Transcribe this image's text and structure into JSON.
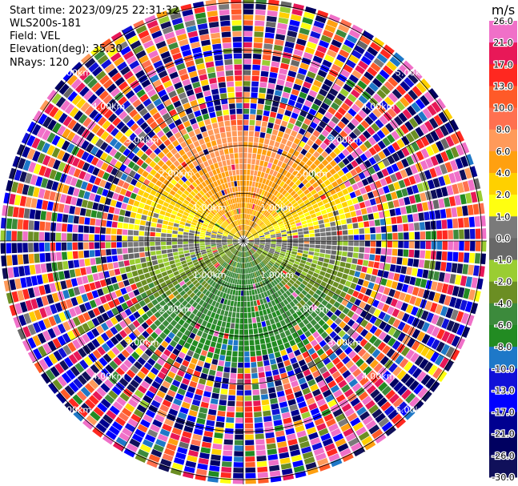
{
  "header": {
    "start_time": "Start time: 2023/09/25 22:31:32",
    "instrument": "WLS200s-181",
    "field": "Field: VEL",
    "elevation": "Elevation(deg): 35.30",
    "nrays": "NRays: 120"
  },
  "colors": {
    "background": "#ffffff",
    "rings": "#000000"
  },
  "chart_data": {
    "type": "heatmap",
    "projection": "polar-ppi",
    "field": "VEL",
    "units": "m/s",
    "nrays": 120,
    "range_rings_km": [
      1.0,
      2.0,
      3.0,
      4.0,
      5.0
    ],
    "range_ring_labels": [
      "1.00km",
      "2.00km",
      "3.00km",
      "4.00km",
      "5.00km"
    ],
    "max_range_km": 5.1,
    "colorbar": {
      "label": "m/s",
      "ticks": [
        "26.0",
        "21.0",
        "17.0",
        "13.0",
        "10.0",
        "8.0",
        "6.0",
        "4.0",
        "2.0",
        "1.0",
        "0.0",
        "-1.0",
        "-2.0",
        "-4.0",
        "-6.0",
        "-8.0",
        "-10.0",
        "-13.0",
        "-17.0",
        "-21.0",
        "-26.0",
        "-30.0"
      ],
      "bands": [
        {
          "from": 21.0,
          "to": 26.0,
          "color": "#f070c8"
        },
        {
          "from": 17.0,
          "to": 21.0,
          "color": "#e81858"
        },
        {
          "from": 13.0,
          "to": 17.0,
          "color": "#ff2820"
        },
        {
          "from": 10.0,
          "to": 13.0,
          "color": "#ff5a28"
        },
        {
          "from": 8.0,
          "to": 10.0,
          "color": "#ff7050"
        },
        {
          "from": 6.0,
          "to": 8.0,
          "color": "#ff9a5a"
        },
        {
          "from": 4.0,
          "to": 6.0,
          "color": "#ffa010"
        },
        {
          "from": 2.0,
          "to": 4.0,
          "color": "#ffd000"
        },
        {
          "from": 1.0,
          "to": 2.0,
          "color": "#ffff10"
        },
        {
          "from": 0.0,
          "to": 1.0,
          "color": "#7a7a7a"
        },
        {
          "from": -1.0,
          "to": 0.0,
          "color": "#686868"
        },
        {
          "from": -2.0,
          "to": -1.0,
          "color": "#9acd32"
        },
        {
          "from": -4.0,
          "to": -2.0,
          "color": "#6b8e23"
        },
        {
          "from": -6.0,
          "to": -4.0,
          "color": "#3c8a3c"
        },
        {
          "from": -8.0,
          "to": -6.0,
          "color": "#228b22"
        },
        {
          "from": -10.0,
          "to": -8.0,
          "color": "#1e78c8"
        },
        {
          "from": -13.0,
          "to": -10.0,
          "color": "#1010d8"
        },
        {
          "from": -17.0,
          "to": -13.0,
          "color": "#0000ff"
        },
        {
          "from": -21.0,
          "to": -17.0,
          "color": "#000090"
        },
        {
          "from": -26.0,
          "to": -21.0,
          "color": "#000060"
        },
        {
          "from": -30.0,
          "to": -26.0,
          "color": "#10105a"
        }
      ]
    },
    "velocity_pattern": {
      "inner_region_km": 2.6,
      "toward_sector_deg": [
        270,
        90,
        "via north: positive (yellow/orange)"
      ],
      "away_sector_deg": [
        90,
        270,
        "via south: negative (green/blue)"
      ],
      "outer_region": "noise (random colors)"
    }
  }
}
